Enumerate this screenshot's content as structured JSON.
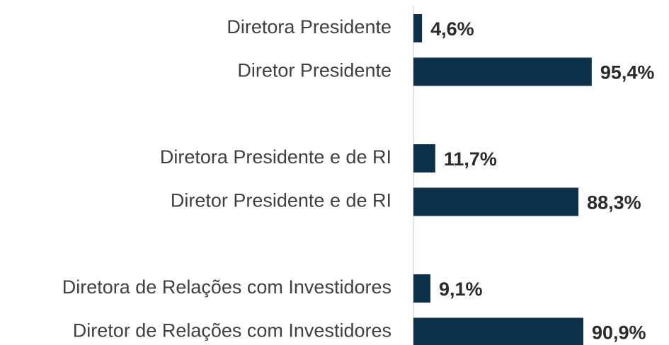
{
  "chart_data": {
    "type": "bar",
    "orientation": "horizontal",
    "categories": [
      "Diretora Presidente",
      "Diretor Presidente",
      "Diretora Presidente e de RI",
      "Diretor Presidente e de RI",
      "Diretora de Relações com Investidores",
      "Diretor de Relações com Investidores"
    ],
    "values": [
      4.6,
      95.4,
      11.7,
      88.3,
      9.1,
      90.9
    ],
    "value_labels": [
      "4,6%",
      "95,4%",
      "11,7%",
      "88,3%",
      "9,1%",
      "90,9%"
    ],
    "color": "#0c3149",
    "xlim": [
      0,
      100
    ]
  }
}
